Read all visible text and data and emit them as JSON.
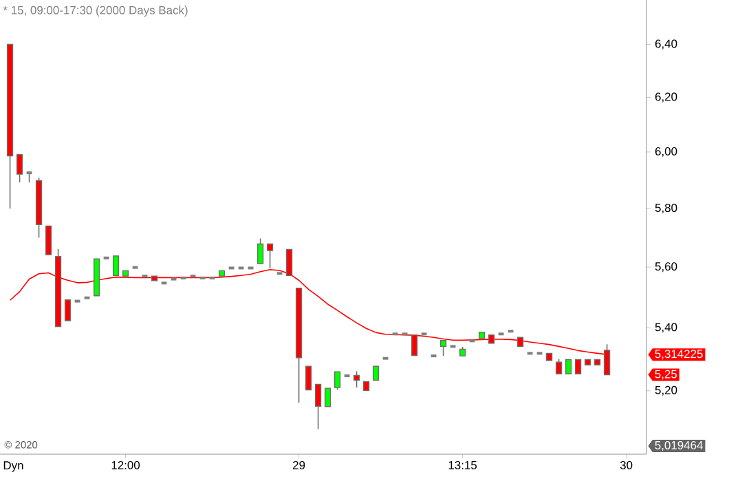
{
  "chart_data": {
    "type": "candlestick",
    "title": "* 15, 09:00-17:30 (2000 Days Back)",
    "categories": [
      null,
      null,
      null,
      null,
      null,
      null,
      null,
      null,
      null,
      null,
      null,
      null,
      "12:00",
      null,
      null,
      null,
      null,
      null,
      null,
      null,
      null,
      null,
      null,
      null,
      null,
      null,
      null,
      null,
      null,
      null,
      "29",
      null,
      null,
      null,
      null,
      null,
      null,
      null,
      null,
      null,
      null,
      null,
      null,
      null,
      null,
      null,
      null,
      "13:15",
      null,
      null,
      null,
      null,
      null,
      null,
      null,
      null,
      null,
      null,
      null,
      null,
      null,
      null,
      null,
      null,
      "30"
    ],
    "ohlc": [
      [
        6.4,
        6.4,
        5.8,
        5.986
      ],
      [
        5.991,
        5.991,
        5.892,
        5.921
      ],
      [
        5.926,
        5.926,
        5.892,
        5.926
      ],
      [
        5.898,
        5.909,
        5.7,
        5.745
      ],
      [
        5.74,
        5.74,
        5.642,
        5.642
      ],
      [
        5.636,
        5.661,
        5.404,
        5.404
      ],
      [
        5.491,
        5.491,
        5.423,
        5.423
      ],
      [
        5.487,
        5.487,
        5.487,
        5.487
      ],
      [
        5.498,
        5.498,
        5.498,
        5.498
      ],
      [
        5.505,
        5.628,
        5.505,
        5.628
      ],
      [
        5.631,
        5.631,
        5.631,
        5.631
      ],
      [
        5.572,
        5.638,
        5.572,
        5.638
      ],
      [
        5.57,
        5.588,
        5.57,
        5.588
      ],
      [
        5.599,
        5.599,
        5.599,
        5.599
      ],
      [
        5.57,
        5.57,
        5.57,
        5.57
      ],
      [
        5.57,
        5.57,
        5.555,
        5.555
      ],
      [
        5.547,
        5.547,
        5.547,
        5.547
      ],
      [
        5.56,
        5.56,
        5.56,
        5.56
      ],
      [
        5.564,
        5.564,
        5.564,
        5.564
      ],
      [
        5.57,
        5.57,
        5.57,
        5.57
      ],
      [
        5.564,
        5.564,
        5.564,
        5.564
      ],
      [
        5.564,
        5.564,
        5.564,
        5.564
      ],
      [
        5.57,
        5.588,
        5.57,
        5.588
      ],
      [
        5.597,
        5.597,
        5.597,
        5.597
      ],
      [
        5.597,
        5.597,
        5.597,
        5.597
      ],
      [
        5.597,
        5.597,
        5.597,
        5.597
      ],
      [
        5.612,
        5.697,
        5.612,
        5.678
      ],
      [
        5.678,
        5.678,
        5.597,
        5.656
      ],
      [
        5.579,
        5.579,
        5.579,
        5.579
      ],
      [
        5.66,
        5.66,
        5.572,
        5.572
      ],
      [
        5.53,
        5.53,
        5.163,
        5.304
      ],
      [
        5.277,
        5.277,
        5.203,
        5.203
      ],
      [
        5.22,
        5.22,
        5.082,
        5.152
      ],
      [
        5.151,
        5.208,
        5.151,
        5.208
      ],
      [
        5.21,
        5.26,
        5.203,
        5.26
      ],
      [
        5.247,
        5.247,
        5.247,
        5.247
      ],
      [
        5.248,
        5.261,
        5.21,
        5.233
      ],
      [
        5.229,
        5.229,
        5.201,
        5.201
      ],
      [
        5.233,
        5.277,
        5.233,
        5.277
      ],
      [
        5.302,
        5.302,
        5.302,
        5.302
      ],
      [
        5.38,
        5.38,
        5.38,
        5.38
      ],
      [
        5.38,
        5.38,
        5.38,
        5.38
      ],
      [
        5.377,
        5.377,
        5.311,
        5.311
      ],
      [
        5.38,
        5.38,
        5.38,
        5.38
      ],
      [
        5.31,
        5.31,
        5.31,
        5.31
      ],
      [
        5.34,
        5.359,
        5.31,
        5.359
      ],
      [
        5.34,
        5.34,
        5.34,
        5.34
      ],
      [
        5.31,
        5.339,
        5.31,
        5.331
      ],
      [
        5.358,
        5.358,
        5.358,
        5.358
      ],
      [
        5.366,
        5.386,
        5.366,
        5.386
      ],
      [
        5.377,
        5.377,
        5.35,
        5.35
      ],
      [
        5.38,
        5.38,
        5.38,
        5.38
      ],
      [
        5.389,
        5.389,
        5.389,
        5.389
      ],
      [
        5.369,
        5.369,
        5.34,
        5.34
      ],
      [
        5.318,
        5.318,
        5.318,
        5.318
      ],
      [
        5.318,
        5.318,
        5.318,
        5.318
      ],
      [
        5.318,
        5.318,
        5.295,
        5.295
      ],
      [
        5.29,
        5.3,
        5.253,
        5.253
      ],
      [
        5.253,
        5.298,
        5.253,
        5.298
      ],
      [
        5.298,
        5.298,
        5.253,
        5.253
      ],
      [
        5.298,
        5.298,
        5.281,
        5.281
      ],
      [
        5.298,
        5.298,
        5.281,
        5.281
      ],
      [
        5.328,
        5.347,
        5.25,
        5.25
      ],
      null,
      null
    ],
    "colors": [
      "#ff0000",
      "#ff0000",
      "#808080",
      "#ff0000",
      "#ff0000",
      "#ff0000",
      "#ff0000",
      "#808080",
      "#808080",
      "#00ff00",
      "#808080",
      "#00ff00",
      "#00ff00",
      "#808080",
      "#808080",
      "#ff0000",
      "#808080",
      "#808080",
      "#808080",
      "#808080",
      "#808080",
      "#808080",
      "#00ff00",
      "#808080",
      "#808080",
      "#808080",
      "#00ff00",
      "#ff0000",
      "#808080",
      "#ff0000",
      "#ff0000",
      "#ff0000",
      "#ff0000",
      "#00ff00",
      "#00ff00",
      "#808080",
      "#ff0000",
      "#ff0000",
      "#00ff00",
      "#808080",
      "#808080",
      "#808080",
      "#ff0000",
      "#808080",
      "#808080",
      "#00ff00",
      "#808080",
      "#00ff00",
      "#808080",
      "#00ff00",
      "#ff0000",
      "#808080",
      "#808080",
      "#ff0000",
      "#808080",
      "#808080",
      "#ff0000",
      "#ff0000",
      "#00ff00",
      "#ff0000",
      "#ff0000",
      "#ff0000",
      "#ff0000",
      null,
      null
    ],
    "series": [
      {
        "type": "line",
        "color": "#ff0000",
        "values": [
          5.49,
          5.518,
          5.56,
          5.578,
          5.581,
          5.566,
          5.556,
          5.548,
          5.549,
          5.556,
          5.562,
          5.567,
          5.566,
          5.565,
          5.565,
          5.565,
          5.565,
          5.565,
          5.565,
          5.565,
          5.565,
          5.565,
          5.567,
          5.569,
          5.572,
          5.576,
          5.585,
          5.592,
          5.589,
          5.578,
          5.556,
          5.526,
          5.503,
          5.477,
          5.457,
          5.436,
          5.416,
          5.398,
          5.385,
          5.379,
          5.378,
          5.377,
          5.376,
          5.373,
          5.369,
          5.364,
          5.36,
          5.36,
          5.361,
          5.362,
          5.363,
          5.363,
          5.362,
          5.359,
          5.354,
          5.35,
          5.346,
          5.34,
          5.334,
          5.327,
          5.322,
          5.318,
          5.314225,
          null,
          null
        ]
      }
    ],
    "log": "y",
    "ylim": [
      5.006,
      6.573
    ],
    "yticks": [
      {
        "value": 5.2,
        "label": "5,20"
      },
      {
        "value": 5.4,
        "label": "5,40"
      },
      {
        "value": 5.6,
        "label": "5,60"
      },
      {
        "value": 5.8,
        "label": "5,80"
      },
      {
        "value": 6.0,
        "label": "6,00"
      },
      {
        "value": 6.2,
        "label": "6,20"
      },
      {
        "value": 6.4,
        "label": "6,40"
      }
    ],
    "annotations": [
      "5,314225",
      "5,25",
      "5,019464",
      "© 2020",
      "Dyn"
    ]
  }
}
